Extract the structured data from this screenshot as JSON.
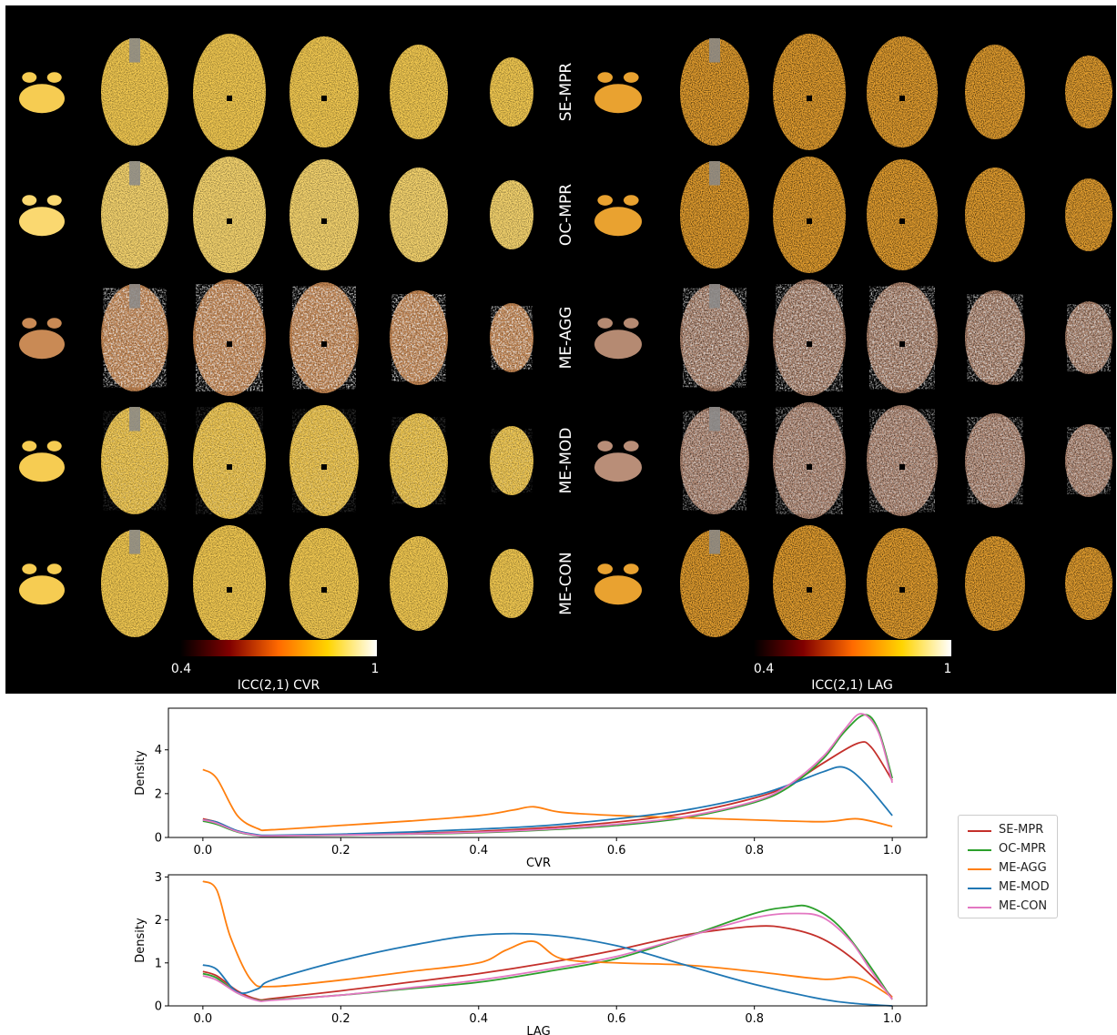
{
  "panel": {
    "rows": [
      "SE-MPR",
      "OC-MPR",
      "ME-AGG",
      "ME-MOD",
      "ME-CON"
    ],
    "colorbars": [
      {
        "label": "ICC(2,1) CVR",
        "min_label": "0.4",
        "max_label": "1"
      },
      {
        "label": "ICC(2,1) LAG",
        "min_label": "0.4",
        "max_label": "1"
      }
    ]
  },
  "legend": {
    "items": [
      {
        "name": "SE-MPR",
        "color": "#c4302b"
      },
      {
        "name": "OC-MPR",
        "color": "#2ca02c"
      },
      {
        "name": "ME-AGG",
        "color": "#ff7f0e"
      },
      {
        "name": "ME-MOD",
        "color": "#1f77b4"
      },
      {
        "name": "ME-CON",
        "color": "#e377c2"
      }
    ]
  },
  "chart_data": [
    {
      "type": "line",
      "xlabel": "CVR",
      "ylabel": "Density",
      "xlim": [
        -0.05,
        1.05
      ],
      "ylim": [
        0,
        5.9
      ],
      "xticks": [
        "0.0",
        "0.2",
        "0.4",
        "0.6",
        "0.8",
        "1.0"
      ],
      "yticks": [
        "0",
        "2",
        "4"
      ],
      "series": [
        {
          "name": "SE-MPR",
          "x": [
            0,
            0.02,
            0.05,
            0.08,
            0.1,
            0.2,
            0.3,
            0.4,
            0.5,
            0.6,
            0.7,
            0.8,
            0.85,
            0.9,
            0.95,
            0.97,
            1.0
          ],
          "y": [
            0.85,
            0.7,
            0.3,
            0.1,
            0.08,
            0.12,
            0.18,
            0.28,
            0.45,
            0.7,
            1.1,
            1.8,
            2.4,
            3.4,
            4.3,
            4.1,
            2.6
          ]
        },
        {
          "name": "OC-MPR",
          "x": [
            0,
            0.02,
            0.05,
            0.08,
            0.1,
            0.2,
            0.3,
            0.4,
            0.5,
            0.6,
            0.7,
            0.8,
            0.85,
            0.9,
            0.93,
            0.96,
            0.98,
            1.0
          ],
          "y": [
            0.75,
            0.6,
            0.25,
            0.08,
            0.06,
            0.1,
            0.15,
            0.22,
            0.35,
            0.55,
            0.9,
            1.6,
            2.3,
            3.6,
            4.8,
            5.6,
            4.9,
            2.7
          ]
        },
        {
          "name": "ME-AGG",
          "x": [
            0,
            0.02,
            0.05,
            0.08,
            0.1,
            0.2,
            0.3,
            0.4,
            0.45,
            0.48,
            0.52,
            0.6,
            0.7,
            0.8,
            0.9,
            0.95,
            1.0
          ],
          "y": [
            3.1,
            2.7,
            1.0,
            0.4,
            0.35,
            0.55,
            0.75,
            1.0,
            1.25,
            1.4,
            1.15,
            1.0,
            0.9,
            0.8,
            0.72,
            0.85,
            0.5
          ]
        },
        {
          "name": "ME-MOD",
          "x": [
            0,
            0.02,
            0.05,
            0.08,
            0.1,
            0.2,
            0.3,
            0.4,
            0.5,
            0.6,
            0.7,
            0.8,
            0.85,
            0.9,
            0.93,
            0.96,
            1.0
          ],
          "y": [
            0.8,
            0.7,
            0.3,
            0.12,
            0.1,
            0.15,
            0.25,
            0.38,
            0.55,
            0.85,
            1.25,
            1.9,
            2.4,
            3.0,
            3.2,
            2.5,
            1.0
          ]
        },
        {
          "name": "ME-CON",
          "x": [
            0,
            0.02,
            0.05,
            0.08,
            0.1,
            0.2,
            0.3,
            0.4,
            0.5,
            0.6,
            0.7,
            0.8,
            0.85,
            0.9,
            0.93,
            0.955,
            0.98,
            1.0
          ],
          "y": [
            0.8,
            0.65,
            0.27,
            0.09,
            0.07,
            0.11,
            0.16,
            0.24,
            0.38,
            0.6,
            0.95,
            1.65,
            2.4,
            3.7,
            4.9,
            5.65,
            4.8,
            2.5
          ]
        }
      ]
    },
    {
      "type": "line",
      "xlabel": "LAG",
      "ylabel": "Density",
      "xlim": [
        -0.05,
        1.05
      ],
      "ylim": [
        0,
        3.05
      ],
      "xticks": [
        "0.0",
        "0.2",
        "0.4",
        "0.6",
        "0.8",
        "1.0"
      ],
      "yticks": [
        "0",
        "1",
        "2",
        "3"
      ],
      "series": [
        {
          "name": "SE-MPR",
          "x": [
            0,
            0.02,
            0.05,
            0.08,
            0.1,
            0.2,
            0.3,
            0.4,
            0.5,
            0.6,
            0.7,
            0.8,
            0.85,
            0.9,
            0.95,
            1.0
          ],
          "y": [
            0.8,
            0.7,
            0.35,
            0.15,
            0.17,
            0.35,
            0.55,
            0.75,
            1.0,
            1.3,
            1.65,
            1.85,
            1.8,
            1.55,
            1.0,
            0.2
          ]
        },
        {
          "name": "OC-MPR",
          "x": [
            0,
            0.02,
            0.05,
            0.08,
            0.1,
            0.2,
            0.3,
            0.4,
            0.5,
            0.6,
            0.7,
            0.8,
            0.85,
            0.88,
            0.92,
            0.96,
            1.0
          ],
          "y": [
            0.75,
            0.65,
            0.3,
            0.13,
            0.14,
            0.25,
            0.4,
            0.55,
            0.8,
            1.1,
            1.6,
            2.15,
            2.3,
            2.3,
            1.9,
            1.1,
            0.15
          ]
        },
        {
          "name": "ME-AGG",
          "x": [
            0,
            0.02,
            0.04,
            0.07,
            0.1,
            0.2,
            0.3,
            0.4,
            0.44,
            0.48,
            0.52,
            0.6,
            0.7,
            0.8,
            0.9,
            0.95,
            1.0
          ],
          "y": [
            2.9,
            2.7,
            1.6,
            0.6,
            0.45,
            0.6,
            0.8,
            1.0,
            1.3,
            1.5,
            1.1,
            1.0,
            0.95,
            0.8,
            0.62,
            0.65,
            0.2
          ]
        },
        {
          "name": "ME-MOD",
          "x": [
            0,
            0.02,
            0.05,
            0.08,
            0.1,
            0.2,
            0.3,
            0.4,
            0.5,
            0.6,
            0.7,
            0.8,
            0.9,
            0.95,
            1.0
          ],
          "y": [
            0.95,
            0.85,
            0.32,
            0.4,
            0.6,
            1.05,
            1.4,
            1.65,
            1.65,
            1.4,
            0.95,
            0.5,
            0.15,
            0.05,
            0.0
          ]
        },
        {
          "name": "ME-CON",
          "x": [
            0,
            0.02,
            0.05,
            0.08,
            0.1,
            0.2,
            0.3,
            0.4,
            0.5,
            0.6,
            0.7,
            0.8,
            0.86,
            0.9,
            0.94,
            0.97,
            1.0
          ],
          "y": [
            0.7,
            0.6,
            0.3,
            0.12,
            0.13,
            0.25,
            0.42,
            0.6,
            0.85,
            1.15,
            1.6,
            2.05,
            2.15,
            2.05,
            1.5,
            0.8,
            0.15
          ]
        }
      ]
    }
  ]
}
